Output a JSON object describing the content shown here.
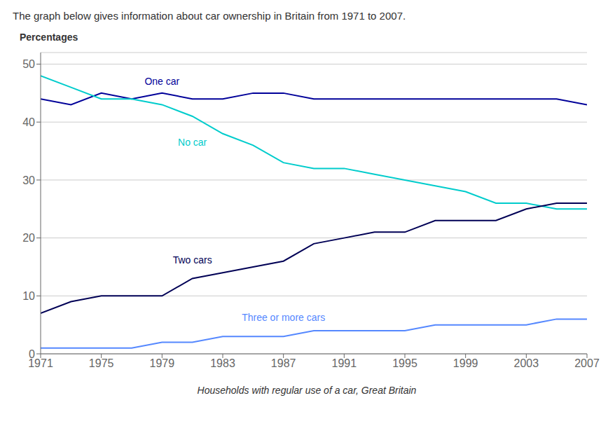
{
  "chart_data": {
    "type": "line",
    "title": "The graph below gives information about car ownership in Britain from 1971 to 2007.",
    "ylabel": "Percentages",
    "xlabel": "Households with regular use of a car, Great Britain",
    "x": [
      1971,
      1973,
      1975,
      1977,
      1979,
      1981,
      1983,
      1985,
      1987,
      1989,
      1991,
      1993,
      1995,
      1997,
      1999,
      2001,
      2003,
      2005,
      2007
    ],
    "series": [
      {
        "name": "One car",
        "color": "#000099",
        "values": [
          44,
          43,
          45,
          44,
          45,
          44,
          44,
          45,
          45,
          44,
          44,
          44,
          44,
          44,
          44,
          44,
          44,
          44,
          43
        ]
      },
      {
        "name": "No car",
        "color": "#00CCCC",
        "values": [
          48,
          46,
          44,
          44,
          43,
          41,
          38,
          36,
          33,
          32,
          32,
          31,
          30,
          29,
          28,
          26,
          26,
          25,
          25
        ]
      },
      {
        "name": "Two cars",
        "color": "#000055",
        "values": [
          7,
          9,
          10,
          10,
          10,
          13,
          14,
          15,
          16,
          19,
          20,
          21,
          21,
          23,
          23,
          23,
          25,
          26,
          26
        ]
      },
      {
        "name": "Three or more cars",
        "color": "#5588FF",
        "values": [
          1,
          1,
          1,
          1,
          2,
          2,
          3,
          3,
          3,
          4,
          4,
          4,
          4,
          5,
          5,
          5,
          5,
          6,
          6
        ]
      }
    ],
    "xlim": [
      1971,
      2007
    ],
    "ylim": [
      0,
      52
    ],
    "xticks": [
      1971,
      1975,
      1979,
      1983,
      1987,
      1991,
      1995,
      1999,
      2003,
      2007
    ],
    "yticks": [
      0,
      10,
      20,
      30,
      40,
      50
    ],
    "grid": true
  }
}
